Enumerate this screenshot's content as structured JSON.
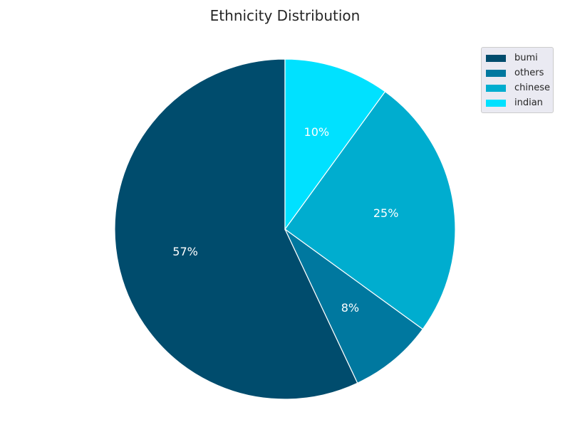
{
  "chart_data": {
    "type": "pie",
    "title": "Ethnicity Distribution",
    "slices": [
      {
        "label": "bumi",
        "value": 57,
        "display": "57%",
        "color": "#004c6d"
      },
      {
        "label": "others",
        "value": 8,
        "display": "8%",
        "color": "#00789f"
      },
      {
        "label": "chinese",
        "value": 25,
        "display": "25%",
        "color": "#00adcf"
      },
      {
        "label": "indian",
        "value": 10,
        "display": "10%",
        "color": "#00e1ff"
      }
    ],
    "start_angle_deg": 90,
    "direction": "counterclockwise",
    "legend_position": "top-right"
  }
}
